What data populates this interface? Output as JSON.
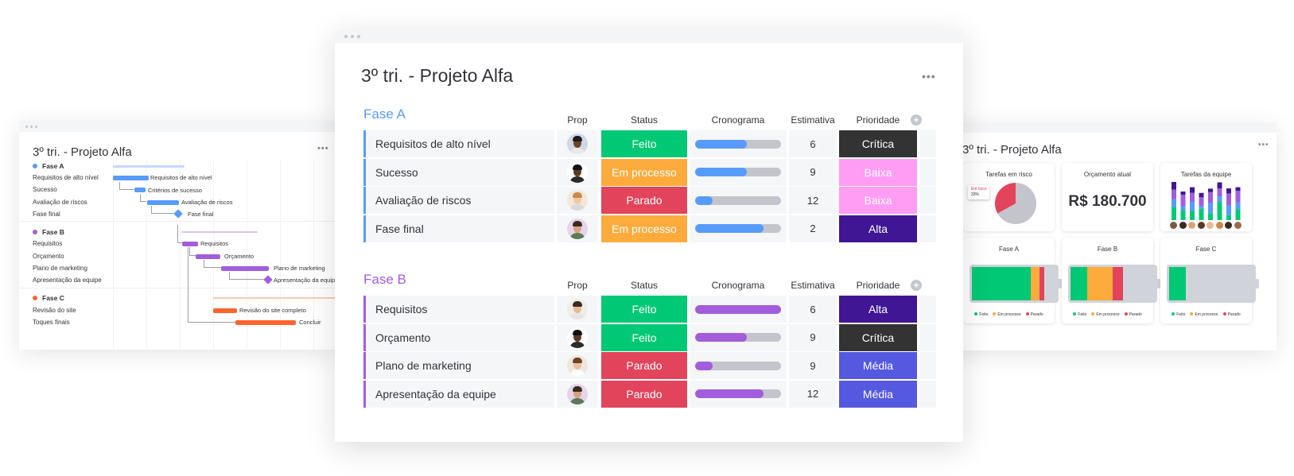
{
  "colors": {
    "fase_a": "#579bfc",
    "fase_b": "#a25ddc",
    "fase_c": "#ff642e",
    "feito": "#00c875",
    "em_processo": "#fdab3d",
    "parado": "#e2445c",
    "critica": "#333333",
    "baixa": "#ff9cf3",
    "alta": "#401694",
    "media": "#5559df"
  },
  "main": {
    "title": "3º tri. - Projeto Alfa",
    "more_label": "•••",
    "add_column_label": "+",
    "groups": [
      {
        "name": "Fase A",
        "color": "#579bfc",
        "columns": [
          "Prop",
          "Status",
          "Cronograma",
          "Estimativa",
          "Prioridade"
        ],
        "rows": [
          {
            "name": "Requisitos de alto nível",
            "status": "Feito",
            "status_color": "#00c875",
            "timeline_progress": 0.6,
            "estimate": "6",
            "priority": "Crítica",
            "priority_color": "#333333",
            "avatar": {
              "skin": "#6b4226",
              "hair": "#1c1c1c",
              "shirt": "#e8e8e8",
              "bg": "#cfd8e6"
            }
          },
          {
            "name": "Sucesso",
            "status": "Em processo",
            "status_color": "#fdab3d",
            "timeline_progress": 0.6,
            "estimate": "9",
            "priority": "Baixa",
            "priority_color": "#ff9cf3",
            "avatar": {
              "skin": "#5a3a22",
              "hair": "#111111",
              "shirt": "#2b2b2b",
              "bg": "#ffffff"
            }
          },
          {
            "name": "Avaliação de riscos",
            "status": "Parado",
            "status_color": "#e2445c",
            "timeline_progress": 0.2,
            "estimate": "12",
            "priority": "Baixa",
            "priority_color": "#ff9cf3",
            "avatar": {
              "skin": "#f1c7a6",
              "hair": "#c98a4a",
              "shirt": "#d9d9d9",
              "bg": "#f3e7da"
            }
          },
          {
            "name": "Fase final",
            "status": "Em processo",
            "status_color": "#fdab3d",
            "timeline_progress": 0.8,
            "estimate": "2",
            "priority": "Alta",
            "priority_color": "#401694",
            "avatar": {
              "skin": "#d8a27c",
              "hair": "#3a2a1e",
              "shirt": "#5a7a5a",
              "bg": "#e6d4ea"
            }
          }
        ]
      },
      {
        "name": "Fase B",
        "color": "#a25ddc",
        "columns": [
          "Prop",
          "Status",
          "Cronograma",
          "Estimativa",
          "Prioridade"
        ],
        "rows": [
          {
            "name": "Requisitos",
            "status": "Feito",
            "status_color": "#00c875",
            "timeline_progress": 1.0,
            "estimate": "6",
            "priority": "Alta",
            "priority_color": "#401694",
            "avatar": {
              "skin": "#e8b995",
              "hair": "#3b2a20",
              "shirt": "#e5e5e5",
              "bg": "#f0ece6"
            }
          },
          {
            "name": "Orçamento",
            "status": "Feito",
            "status_color": "#00c875",
            "timeline_progress": 0.6,
            "estimate": "9",
            "priority": "Crítica",
            "priority_color": "#333333",
            "avatar": {
              "skin": "#5a3a22",
              "hair": "#111111",
              "shirt": "#2b2b2b",
              "bg": "#ffffff"
            }
          },
          {
            "name": "Plano de marketing",
            "status": "Parado",
            "status_color": "#e2445c",
            "timeline_progress": 0.2,
            "estimate": "9",
            "priority": "Média",
            "priority_color": "#5559df",
            "avatar": {
              "skin": "#e9c0a0",
              "hair": "#6b4423",
              "shirt": "#ffffff",
              "bg": "#efe6dc"
            }
          },
          {
            "name": "Apresentação da equipe",
            "status": "Parado",
            "status_color": "#e2445c",
            "timeline_progress": 0.8,
            "estimate": "12",
            "priority": "Média",
            "priority_color": "#5559df",
            "avatar": {
              "skin": "#d8a27c",
              "hair": "#3a2a1e",
              "shirt": "#5a7a5a",
              "bg": "#e6d4ea"
            }
          }
        ]
      }
    ]
  },
  "gantt": {
    "title": "3º tri. - Projeto Alfa",
    "more_label": "•••",
    "groups": [
      {
        "name": "Fase A",
        "color": "#579bfc",
        "items": [
          "Requisitos de alto nível",
          "Sucesso",
          "Avaliação de riscos",
          "Fase final"
        ]
      },
      {
        "name": "Fase B",
        "color": "#a25ddc",
        "items": [
          "Requisitos",
          "Orçamento",
          "Plano de marketing",
          "Apresentação da equipe"
        ]
      },
      {
        "name": "Fase C",
        "color": "#ff642e",
        "items": [
          "Revisão do site",
          "Toques finais"
        ]
      }
    ],
    "bar_labels": [
      "Requisitos de alto nível",
      "Critérios de sucesso",
      "Avaliação de riscos",
      "Fase final",
      "Requisitos",
      "Orçamento",
      "Plano de marketing",
      "Apresentação da equipe",
      "Revisão do site completo",
      "Concluir"
    ]
  },
  "dashboard": {
    "title": "3º tri. - Projeto Alfa",
    "more_label": "•••",
    "risk": {
      "title": "Tarefas em risco",
      "tag": "Em risco",
      "percent": "33%",
      "value": 0.33
    },
    "budget": {
      "title": "Orçamento atual",
      "value": "R$ 180.700"
    },
    "team": {
      "title": "Tarefas da equipe"
    },
    "phases": [
      {
        "title": "Fase A",
        "feito": 0.7,
        "processo": 0.1,
        "parado": 0.06
      },
      {
        "title": "Fase B",
        "feito": 0.2,
        "processo": 0.3,
        "parado": 0.12
      },
      {
        "title": "Fase C",
        "feito": 0.2,
        "processo": 0.0,
        "parado": 0.0
      }
    ],
    "legend": [
      "Feito",
      "Em processo",
      "Parado"
    ]
  }
}
